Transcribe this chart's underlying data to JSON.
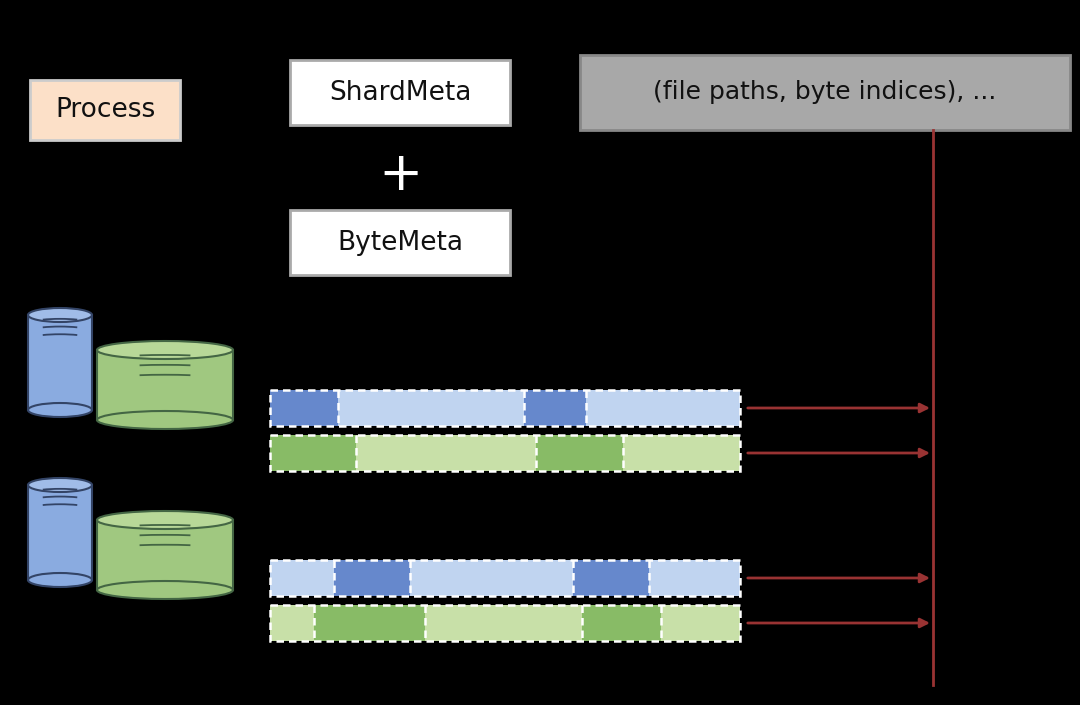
{
  "bg_color": "#000000",
  "white_box_color": "#ffffff",
  "white_box_edge": "#aaaaaa",
  "process_box_color": "#fce0c8",
  "process_box_edge": "#cccccc",
  "gray_box_color": "#a8a8a8",
  "gray_box_edge": "#888888",
  "blue_cyl_color": "#8aabe0",
  "blue_cyl_top": "#a0bce8",
  "blue_cyl_edge": "#334466",
  "green_cyl_color": "#a0c880",
  "green_cyl_top": "#b8d898",
  "green_cyl_edge": "#446644",
  "blue_seg_dark": "#6688cc",
  "blue_seg_light": "#c0d4f0",
  "green_seg_dark": "#88bb66",
  "green_seg_light": "#c8e0a8",
  "arrow_color": "#993333",
  "line_color": "#993333",
  "text_color_dark": "#111111",
  "shard_meta_text": "ShardMeta",
  "byte_meta_text": "ByteMeta",
  "process_text": "Process",
  "file_paths_text": "(file paths, byte indices), ...",
  "plus_sign": "+",
  "font_size_box": 19,
  "font_size_fp": 18,
  "font_size_plus": 38
}
